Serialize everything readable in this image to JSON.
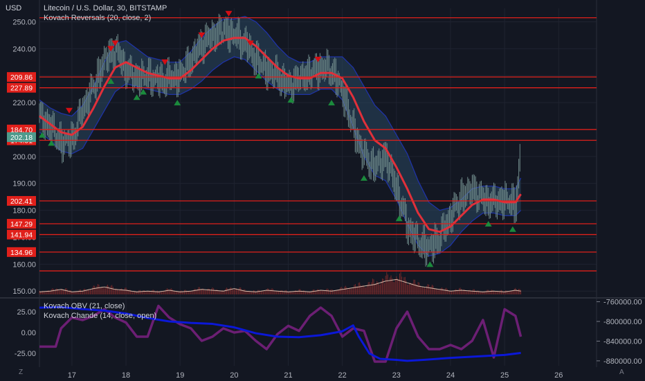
{
  "header": {
    "currency_label": "USD",
    "symbol_line": "Litecoin / U.S. Dollar, 30, BITSTAMP",
    "indicator_line": "Kovach Reversals (20, close, 2)"
  },
  "lower_panel": {
    "obv_label": "Kovach OBV (21, close)",
    "chande_label": "Kovach Chande (14, close, open)"
  },
  "footer": {
    "left_glyph": "Z",
    "right_glyph": "A"
  },
  "colors": {
    "background": "#131722",
    "grid": "#1f2330",
    "level_line": "#e0201b",
    "sma": "#e0303a",
    "band_fill": "#2a4760",
    "band_edge": "#1f33a6",
    "candle": "#6f8a8a",
    "buy_marker": "#1b8a3c",
    "sell_marker": "#d40e14",
    "current_price": "#4f9a8c",
    "volume": "#8a2d2d",
    "obv": "#0b18d8",
    "chande": "#6c1f74"
  },
  "chart_data": [
    {
      "type": "line",
      "panel": "price",
      "ylabel": "USD",
      "yticks": [
        150,
        160,
        170,
        180,
        190,
        200,
        210,
        220,
        230,
        240,
        250
      ],
      "ytick_labels": [
        "150.00",
        "160.00",
        "170.00",
        "180.00",
        "190.00",
        "200.00",
        "210.00",
        "220.00",
        "230.00",
        "240.00",
        "250.00"
      ],
      "ylim": [
        148,
        255
      ],
      "xticks": [
        17,
        18,
        19,
        20,
        21,
        22,
        23,
        24,
        25,
        26
      ],
      "xlim": [
        16.4,
        26.7
      ],
      "current_price": 202.18,
      "current_price_label": "202.18",
      "horizontal_levels": [
        {
          "price": 251.5,
          "label": ""
        },
        {
          "price": 229.5,
          "label": "209.86"
        },
        {
          "price": 225.5,
          "label": "227.89"
        },
        {
          "price": 210.0,
          "label": "184.70"
        },
        {
          "price": 206.0,
          "label": "174.91"
        },
        {
          "price": 183.5,
          "label": "202.41"
        },
        {
          "price": 175.0,
          "label": "147.29"
        },
        {
          "price": 171.0,
          "label": "141.94"
        },
        {
          "price": 164.5,
          "label": "134.96"
        },
        {
          "price": 157.5,
          "label": ""
        }
      ],
      "close_series": {
        "x": [
          16.4,
          16.6,
          16.8,
          17.0,
          17.2,
          17.4,
          17.6,
          17.8,
          18.0,
          18.2,
          18.4,
          18.6,
          18.8,
          19.0,
          19.2,
          19.4,
          19.6,
          19.8,
          20.0,
          20.2,
          20.4,
          20.6,
          20.8,
          21.0,
          21.2,
          21.4,
          21.6,
          21.8,
          22.0,
          22.2,
          22.4,
          22.6,
          22.8,
          23.0,
          23.2,
          23.4,
          23.6,
          23.8,
          24.0,
          24.2,
          24.4,
          24.6,
          24.8,
          25.0,
          25.2,
          25.3
        ],
        "y": [
          215,
          211,
          205,
          206,
          218,
          226,
          236,
          240,
          232,
          229,
          230,
          228,
          229,
          230,
          236,
          242,
          245,
          247,
          245,
          242,
          236,
          232,
          230,
          226,
          229,
          231,
          233,
          232,
          224,
          210,
          200,
          196,
          200,
          188,
          174,
          168,
          166,
          170,
          178,
          185,
          188,
          184,
          183,
          184,
          182,
          203
        ]
      },
      "sma_series": {
        "name": "Kovach Reversals (20, close, 2)",
        "x": [
          16.4,
          16.6,
          16.8,
          17.0,
          17.2,
          17.4,
          17.6,
          17.8,
          18.0,
          18.2,
          18.4,
          18.6,
          18.8,
          19.0,
          19.2,
          19.4,
          19.6,
          19.8,
          20.0,
          20.2,
          20.4,
          20.6,
          20.8,
          21.0,
          21.2,
          21.4,
          21.6,
          21.8,
          22.0,
          22.2,
          22.4,
          22.6,
          22.8,
          23.0,
          23.2,
          23.4,
          23.6,
          23.8,
          24.0,
          24.2,
          24.4,
          24.6,
          24.8,
          25.0,
          25.2,
          25.3
        ],
        "y": [
          215,
          212,
          209,
          208,
          211,
          218,
          226,
          233,
          235,
          233,
          231,
          230,
          229,
          229,
          232,
          236,
          240,
          243,
          244,
          244,
          241,
          237,
          233,
          230,
          229,
          229,
          231,
          231,
          229,
          222,
          213,
          206,
          203,
          196,
          188,
          179,
          173,
          172,
          174,
          178,
          182,
          184,
          184,
          183,
          183,
          186
        ]
      },
      "band_halfwidth": [
        6,
        6,
        7,
        7,
        8,
        8,
        9,
        9,
        8,
        7,
        6,
        6,
        6,
        6,
        7,
        8,
        8,
        8,
        7,
        8,
        9,
        9,
        8,
        7,
        6,
        6,
        6,
        6,
        8,
        11,
        13,
        13,
        12,
        12,
        13,
        12,
        10,
        8,
        7,
        6,
        6,
        5,
        5,
        5,
        5,
        6
      ],
      "sell_signals": {
        "x": [
          16.95,
          17.72,
          17.8,
          18.72,
          19.4,
          19.9,
          20.3,
          21.55
        ],
        "y": [
          217,
          240,
          242,
          235,
          245,
          253,
          242,
          236
        ]
      },
      "buy_signals": {
        "x": [
          16.45,
          16.62,
          17.72,
          18.2,
          18.32,
          18.95,
          20.45,
          21.05,
          21.8,
          22.4,
          23.05,
          23.62,
          24.7,
          25.15
        ],
        "y": [
          208,
          205,
          228,
          222,
          224,
          220,
          230,
          221,
          220,
          192,
          177,
          160,
          175,
          173
        ]
      }
    },
    {
      "type": "bar",
      "panel": "volume",
      "x": [
        16.4,
        16.6,
        16.8,
        17.0,
        17.2,
        17.4,
        17.6,
        17.8,
        18.0,
        18.2,
        18.4,
        18.6,
        18.8,
        19.0,
        19.2,
        19.4,
        19.6,
        19.8,
        20.0,
        20.2,
        20.4,
        20.6,
        20.8,
        21.0,
        21.2,
        21.4,
        21.6,
        21.8,
        22.0,
        22.2,
        22.4,
        22.6,
        22.8,
        23.0,
        23.2,
        23.4,
        23.6,
        23.8,
        24.0,
        24.2,
        24.4,
        24.6,
        24.8,
        25.0,
        25.2,
        25.3
      ],
      "values": [
        0.15,
        0.2,
        0.3,
        0.15,
        0.2,
        0.35,
        0.45,
        0.3,
        0.25,
        0.15,
        0.2,
        0.15,
        0.25,
        0.15,
        0.2,
        0.3,
        0.25,
        0.2,
        0.35,
        0.2,
        0.15,
        0.25,
        0.2,
        0.15,
        0.2,
        0.15,
        0.25,
        0.2,
        0.3,
        0.4,
        0.5,
        0.6,
        0.8,
        0.9,
        0.7,
        0.5,
        0.4,
        0.3,
        0.2,
        0.25,
        0.2,
        0.15,
        0.2,
        0.15,
        0.25,
        0.2
      ]
    },
    {
      "type": "line",
      "panel": "oscillator",
      "yticks": [
        25,
        0,
        -25
      ],
      "ytick_labels": [
        "25.00",
        "0.00",
        "-25.00"
      ],
      "ylim": [
        -40,
        40
      ],
      "right_axis_ticks": [
        -760000,
        -800000,
        -840000,
        -880000
      ],
      "right_axis_labels": [
        "-760000.00",
        "-800000.00",
        "-840000.00",
        "-880000.00"
      ],
      "right_axis_lim": [
        -890000,
        -755000
      ],
      "series": [
        {
          "name": "Kovach OBV (21, close)",
          "x": [
            16.4,
            16.8,
            17.2,
            17.6,
            18.0,
            18.4,
            18.8,
            19.2,
            19.6,
            20.0,
            20.4,
            20.8,
            21.2,
            21.6,
            22.0,
            22.2,
            22.3,
            22.5,
            22.7,
            23.0,
            23.2,
            23.5,
            24.0,
            24.5,
            25.0,
            25.3
          ],
          "values": [
            -772000,
            -771000,
            -775000,
            -778000,
            -784000,
            -793000,
            -800000,
            -803000,
            -805000,
            -812000,
            -824000,
            -831000,
            -832000,
            -828000,
            -820000,
            -808000,
            -830000,
            -865000,
            -876000,
            -878000,
            -880000,
            -878000,
            -874000,
            -871000,
            -868000,
            -864000
          ]
        },
        {
          "name": "Kovach Chande (14, close, open)",
          "x": [
            16.4,
            16.7,
            16.8,
            17.0,
            17.2,
            17.4,
            17.6,
            17.8,
            18.0,
            18.2,
            18.4,
            18.6,
            18.8,
            19.0,
            19.2,
            19.4,
            19.6,
            19.8,
            20.0,
            20.2,
            20.4,
            20.6,
            20.8,
            21.0,
            21.2,
            21.4,
            21.6,
            21.8,
            22.0,
            22.2,
            22.4,
            22.6,
            22.8,
            23.0,
            23.2,
            23.4,
            23.6,
            23.8,
            24.0,
            24.2,
            24.4,
            24.6,
            24.8,
            25.0,
            25.2,
            25.3
          ],
          "values": [
            -17,
            -17,
            5,
            18,
            15,
            20,
            28,
            18,
            12,
            -5,
            -5,
            32,
            18,
            10,
            5,
            -10,
            -5,
            5,
            0,
            2,
            -10,
            -20,
            -2,
            8,
            2,
            20,
            30,
            20,
            -5,
            5,
            2,
            -35,
            -35,
            5,
            25,
            -5,
            -20,
            -20,
            -15,
            -20,
            -10,
            15,
            -30,
            28,
            20,
            -5
          ]
        }
      ]
    }
  ],
  "bottom_axis_labels": [
    "17",
    "18",
    "19",
    "20",
    "21",
    "22",
    "23",
    "24",
    "25",
    "26"
  ]
}
